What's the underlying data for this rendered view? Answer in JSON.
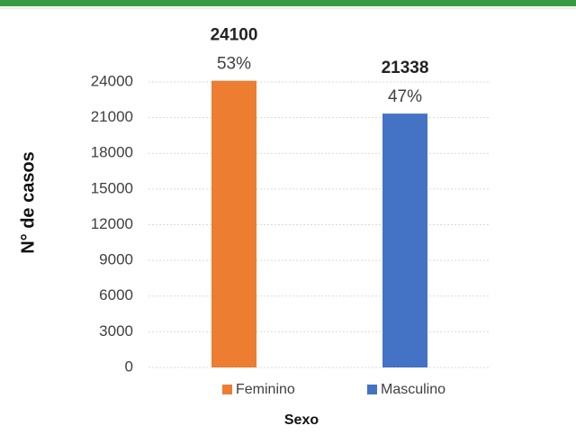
{
  "chart_data": {
    "type": "bar",
    "categories": [
      "Feminino",
      "Masculino"
    ],
    "values": [
      24100,
      21338
    ],
    "share_labels": [
      "53%",
      "47%"
    ],
    "colors": [
      "#ed7d31",
      "#4472c4"
    ],
    "ylabel": "N° de casos",
    "xlabel": "Sexo",
    "ylim": [
      0,
      24000
    ],
    "yticks": [
      0,
      3000,
      6000,
      9000,
      12000,
      15000,
      18000,
      21000,
      24000
    ],
    "grid": true,
    "legend": "bottom"
  }
}
